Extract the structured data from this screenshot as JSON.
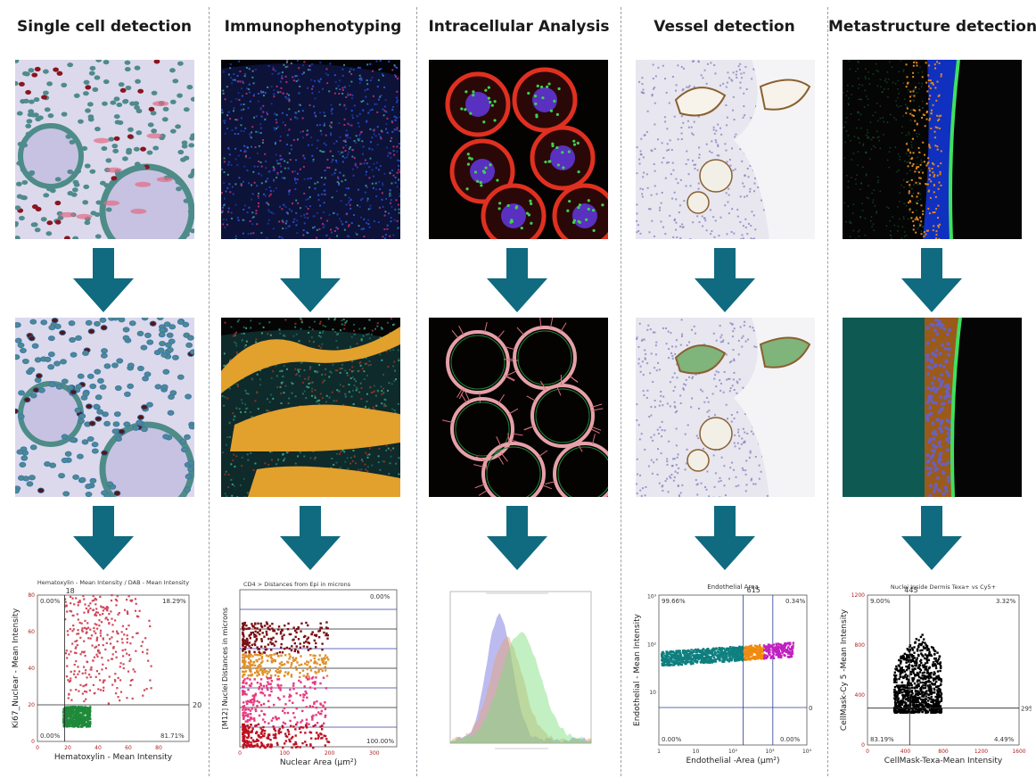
{
  "colors": {
    "arrow": "#106a80",
    "divider": "#9aa0a6"
  },
  "columns": [
    {
      "title": "Single cell detection"
    },
    {
      "title": "Immunophenotyping"
    },
    {
      "title": "Intracellular Analysis"
    },
    {
      "title": "Vessel detection"
    },
    {
      "title": "Metastructure detection"
    }
  ],
  "chart_data": [
    {
      "type": "scatter",
      "title": "Hematoxylin - Mean Intensity / DAB - Mean Intensity",
      "xlabel": "Hematoxylin - Mean Intensity",
      "ylabel": "Ki67_Nuclear - Mean Intensity",
      "xlim": [
        0,
        100
      ],
      "ylim": [
        0,
        80
      ],
      "xticks": [
        "0",
        "20",
        "40",
        "60",
        "80"
      ],
      "yticks": [
        "0",
        "20",
        "40",
        "60",
        "80"
      ],
      "gate_x_label": "18",
      "gate_y_label": "20",
      "quadrants": {
        "top_left": "0.00%",
        "top_right": "18.29%",
        "bottom_left": "0.00%",
        "bottom_right": "81.71%"
      },
      "series": [
        {
          "color": "#d04a5c",
          "cluster": {
            "x": [
              18,
              75
            ],
            "y": [
              20,
              80
            ]
          }
        },
        {
          "color": "#1f8a3a",
          "cluster": {
            "x": [
              17,
              35
            ],
            "y": [
              8,
              19
            ]
          }
        }
      ]
    },
    {
      "type": "bar",
      "title": "CD4 > Distances from Epi in microns",
      "xlabel": "Nuclear Area (μm²)",
      "ylabel": "[M12] Nuclei Distances in microns",
      "xticks": [
        "0",
        "100",
        "200",
        "300"
      ],
      "quadrants": {
        "top_right": "0.00%",
        "bottom_right": "100.00%"
      },
      "series": [
        {
          "name": "",
          "color": "#7a0f14"
        },
        {
          "name": "",
          "color": "#e0902a"
        },
        {
          "name": "",
          "color": "#e83a7e"
        },
        {
          "name": "",
          "color": "#c01020"
        }
      ]
    },
    {
      "type": "area",
      "title": "",
      "series": [
        {
          "color": "#6a6ae0",
          "peak": 0.35
        },
        {
          "color": "#e8a070",
          "peak": 0.4
        },
        {
          "color": "#7ae07a",
          "peak": 0.5
        }
      ]
    },
    {
      "type": "scatter",
      "title": "Endothelial Area",
      "xlabel": "Endothelial -Area (μm²)",
      "ylabel": "Endothelial - Mean Intensity",
      "xscale": "log",
      "yscale": "log",
      "xticks": [
        "1",
        "10",
        "10²",
        "10³",
        "10⁴"
      ],
      "yticks": [
        "10",
        "10²",
        "10³"
      ],
      "gate_x_label": "615",
      "gate_y_label": "0",
      "quadrants": {
        "top_left": "99.66%",
        "top_right": "0.34%",
        "bottom_left": "0.00%",
        "bottom_right": "0.00%"
      },
      "series": [
        {
          "color": "#0f7f7f"
        },
        {
          "color": "#f08a10"
        },
        {
          "color": "#c020c0"
        }
      ]
    },
    {
      "type": "scatter",
      "title": "Nuclei Inside Dermis Texa+ vs Cy5+",
      "xlabel": "CellMask-Texa-Mean Intensity",
      "ylabel": "CellMask-Cy 5 -Mean Intensity",
      "xlim": [
        0,
        1600
      ],
      "ylim": [
        0,
        1200
      ],
      "xticks": [
        "0",
        "400",
        "800",
        "1200",
        "1600"
      ],
      "yticks": [
        "0",
        "400",
        "800",
        "1200"
      ],
      "gate_x_label": "445",
      "gate_y_label": "295",
      "quadrants": {
        "top_left": "9.00%",
        "top_right": "3.32%",
        "bottom_left": "83.19%",
        "bottom_right": "4.49%"
      },
      "series": [
        {
          "color": "#000000"
        }
      ]
    }
  ]
}
